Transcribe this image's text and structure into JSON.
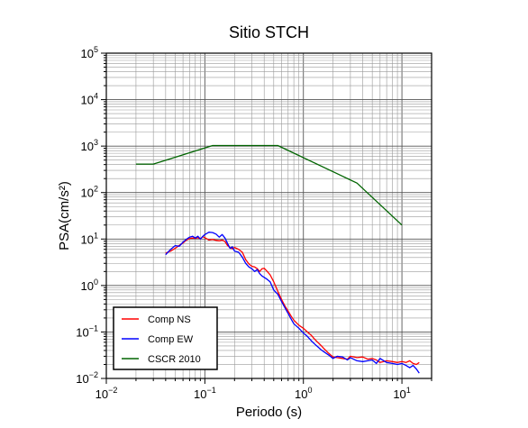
{
  "chart_data": {
    "type": "line",
    "title": "Sitio STCH",
    "xlabel": "Periodo (s)",
    "ylabel": "PSA(cm/s²)",
    "x_scale": "log",
    "y_scale": "log",
    "xlim": [
      0.01,
      20
    ],
    "ylim": [
      0.01,
      100000
    ],
    "grid": true,
    "legend_position": "bottom-left",
    "x_ticks": [
      {
        "value": 0.01,
        "base": "10",
        "exp": "−2"
      },
      {
        "value": 0.1,
        "base": "10",
        "exp": "−1"
      },
      {
        "value": 1,
        "base": "10",
        "exp": "0"
      },
      {
        "value": 10,
        "base": "10",
        "exp": "1"
      }
    ],
    "y_ticks": [
      {
        "value": 0.01,
        "base": "10",
        "exp": "−2"
      },
      {
        "value": 0.1,
        "base": "10",
        "exp": "−1"
      },
      {
        "value": 1,
        "base": "10",
        "exp": "0"
      },
      {
        "value": 10,
        "base": "10",
        "exp": "1"
      },
      {
        "value": 100,
        "base": "10",
        "exp": "2"
      },
      {
        "value": 1000,
        "base": "10",
        "exp": "3"
      },
      {
        "value": 10000,
        "base": "10",
        "exp": "4"
      },
      {
        "value": 100000,
        "base": "10",
        "exp": "5"
      }
    ],
    "series": [
      {
        "name": "Comp NS",
        "color": "#ff0000",
        "x": [
          0.04,
          0.045,
          0.05,
          0.055,
          0.06,
          0.065,
          0.07,
          0.075,
          0.08,
          0.085,
          0.09,
          0.095,
          0.1,
          0.11,
          0.12,
          0.13,
          0.14,
          0.15,
          0.16,
          0.17,
          0.18,
          0.19,
          0.2,
          0.22,
          0.24,
          0.26,
          0.28,
          0.3,
          0.32,
          0.34,
          0.36,
          0.38,
          0.4,
          0.43,
          0.46,
          0.5,
          0.55,
          0.6,
          0.65,
          0.7,
          0.75,
          0.8,
          0.9,
          1.0,
          1.1,
          1.2,
          1.3,
          1.4,
          1.5,
          1.6,
          1.8,
          2.0,
          2.2,
          2.5,
          2.8,
          3.0,
          3.5,
          4.0,
          4.5,
          5.0,
          5.5,
          6.0,
          7.0,
          8.0,
          9.0,
          10.0,
          11.0,
          12.0,
          13.0,
          14.0,
          15.0
        ],
        "y": [
          5.0,
          5.5,
          6.3,
          7.3,
          8.2,
          9.5,
          10.2,
          10.5,
          10.3,
          10.7,
          10.0,
          11.2,
          10.7,
          9.5,
          9.8,
          9.4,
          9.2,
          9.5,
          8.8,
          7.2,
          6.5,
          6.2,
          6.6,
          6.0,
          5.2,
          3.6,
          2.9,
          2.6,
          2.5,
          2.3,
          2.0,
          2.3,
          2.35,
          2.0,
          1.7,
          1.2,
          0.75,
          0.5,
          0.36,
          0.28,
          0.22,
          0.18,
          0.14,
          0.12,
          0.1,
          0.085,
          0.07,
          0.06,
          0.052,
          0.045,
          0.035,
          0.029,
          0.028,
          0.027,
          0.026,
          0.03,
          0.028,
          0.029,
          0.026,
          0.027,
          0.025,
          0.022,
          0.024,
          0.023,
          0.022,
          0.023,
          0.022,
          0.024,
          0.021,
          0.02,
          0.022
        ]
      },
      {
        "name": "Comp EW",
        "color": "#0000ff",
        "x": [
          0.04,
          0.045,
          0.05,
          0.055,
          0.06,
          0.065,
          0.07,
          0.075,
          0.08,
          0.085,
          0.09,
          0.095,
          0.1,
          0.11,
          0.12,
          0.13,
          0.14,
          0.15,
          0.16,
          0.17,
          0.18,
          0.19,
          0.2,
          0.22,
          0.24,
          0.26,
          0.28,
          0.3,
          0.32,
          0.34,
          0.36,
          0.38,
          0.4,
          0.43,
          0.46,
          0.5,
          0.55,
          0.6,
          0.65,
          0.7,
          0.75,
          0.8,
          0.9,
          1.0,
          1.1,
          1.2,
          1.3,
          1.4,
          1.5,
          1.6,
          1.8,
          2.0,
          2.2,
          2.5,
          2.8,
          3.0,
          3.5,
          4.0,
          4.5,
          5.0,
          5.5,
          6.0,
          7.0,
          8.0,
          9.0,
          10.0,
          11.0,
          12.0,
          13.0,
          14.0,
          15.0
        ],
        "y": [
          4.6,
          6.0,
          7.2,
          7.0,
          8.6,
          9.9,
          11.0,
          11.5,
          10.5,
          11.5,
          10.0,
          11.3,
          12.5,
          14.0,
          13.8,
          12.8,
          11.0,
          12.5,
          10.5,
          8.0,
          6.3,
          6.8,
          5.5,
          5.2,
          4.1,
          3.0,
          2.5,
          2.3,
          2.0,
          2.2,
          1.8,
          1.6,
          1.5,
          1.35,
          1.2,
          0.8,
          0.65,
          0.45,
          0.33,
          0.25,
          0.19,
          0.15,
          0.12,
          0.095,
          0.08,
          0.065,
          0.055,
          0.048,
          0.042,
          0.038,
          0.032,
          0.027,
          0.03,
          0.029,
          0.025,
          0.028,
          0.024,
          0.023,
          0.024,
          0.025,
          0.021,
          0.027,
          0.022,
          0.021,
          0.02,
          0.021,
          0.019,
          0.017,
          0.019,
          0.016,
          0.013
        ]
      },
      {
        "name": "CSCR 2010",
        "color": "#006400",
        "x": [
          0.02,
          0.03,
          0.12,
          0.55,
          3.5,
          10.0
        ],
        "y": [
          410,
          410,
          1030,
          1030,
          160,
          20
        ]
      }
    ]
  }
}
